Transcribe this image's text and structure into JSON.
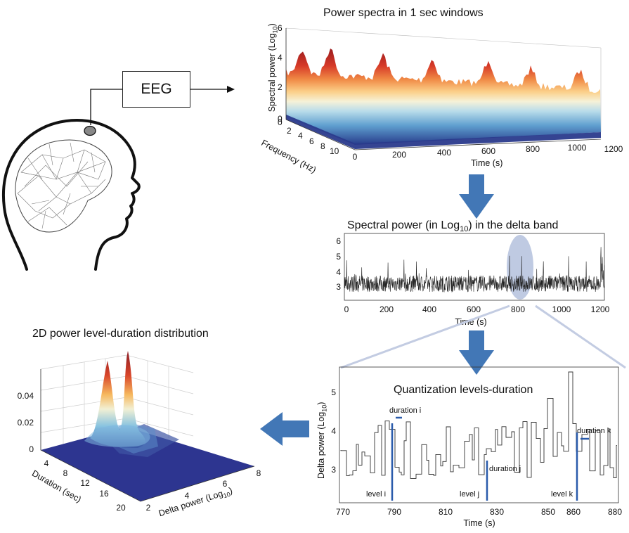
{
  "eeg_label": "EEG",
  "spectra": {
    "title_prefix": "Power spectra in 1 sec windows",
    "ylabel": "Spectral power (Log",
    "ylabel_sub": "10",
    "ylabel_end": ")",
    "yticks": [
      "0",
      "2",
      "4",
      "6"
    ],
    "freq_label": "Frequency (Hz)",
    "freq_ticks": [
      "0",
      "2",
      "4",
      "6",
      "8",
      "10"
    ],
    "time_label": "Time (s)",
    "time_ticks": [
      "0",
      "200",
      "400",
      "600",
      "800",
      "1000",
      "1200"
    ]
  },
  "delta": {
    "title_main": "Spectral power (in Log",
    "title_sub": "10",
    "title_end": ") in the delta band",
    "yticks": [
      "3",
      "4",
      "5",
      "6"
    ],
    "xticks": [
      "0",
      "200",
      "400",
      "600",
      "800",
      "1000",
      "1200"
    ],
    "xlabel": "Time (s)"
  },
  "quant": {
    "title": "Quantization levels-duration",
    "ylabel": "Delta power (Log",
    "ylabel_sub": "10",
    "ylabel_end": ")",
    "yticks": [
      "3",
      "4",
      "5"
    ],
    "xticks": [
      "770",
      "790",
      "810",
      "830",
      "850",
      "860",
      "880"
    ],
    "xlabel": "Time (s)",
    "dur_i": "duration i",
    "dur_j": "duration j",
    "dur_k": "duration k",
    "lev_i": "level i",
    "lev_j": "level j",
    "lev_k": "level k",
    "marker_color": "#2a5bab"
  },
  "dist": {
    "title": "2D power level-duration distribution",
    "zticks": [
      "0",
      "0.02",
      "0.04"
    ],
    "dur_label": "Duration (sec)",
    "dur_ticks": [
      "4",
      "8",
      "12",
      "16",
      "20"
    ],
    "pow_label": "Delta power (Log",
    "pow_sub": "10",
    "pow_end": ")",
    "pow_ticks": [
      "2",
      "4",
      "6",
      "8"
    ]
  },
  "colors": {
    "arrow": "#4277b6",
    "surface_floor": "#2d3590",
    "highlight": "#a9b8d8"
  }
}
